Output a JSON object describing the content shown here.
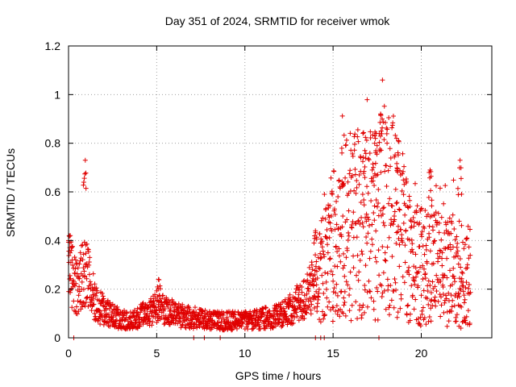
{
  "chart_data": {
    "type": "scatter",
    "title": "Day 351 of 2024, SRMTID for receiver wmok",
    "xlabel": "GPS time / hours",
    "ylabel": "SRMTID / TECUs",
    "xlim": [
      0,
      24
    ],
    "ylim": [
      0,
      1.2
    ],
    "xticks": [
      0,
      5,
      10,
      15,
      20
    ],
    "yticks": [
      0,
      0.2,
      0.4,
      0.6,
      0.8,
      1,
      1.2
    ],
    "xtick_labels": [
      "0",
      "5",
      "10",
      "15",
      "20"
    ],
    "ytick_labels": [
      "0",
      "0.2",
      "0.4",
      "0.6",
      "0.8",
      "1",
      "1.2"
    ],
    "grid": true,
    "marker": "+",
    "color": "#e00000",
    "series": [
      {
        "name": "SRMTID",
        "description": "per-satellite SRMTID values, approx. 0-22.8 h",
        "envelope": [
          {
            "x": 0.0,
            "y": 0.28
          },
          {
            "x": 0.5,
            "y": 0.2
          },
          {
            "x": 1.0,
            "y": 0.3
          },
          {
            "x": 1.5,
            "y": 0.14
          },
          {
            "x": 2.5,
            "y": 0.09
          },
          {
            "x": 3.5,
            "y": 0.07
          },
          {
            "x": 5.0,
            "y": 0.12
          },
          {
            "x": 6.5,
            "y": 0.09
          },
          {
            "x": 8.0,
            "y": 0.07
          },
          {
            "x": 10.0,
            "y": 0.07
          },
          {
            "x": 12.0,
            "y": 0.09
          },
          {
            "x": 13.5,
            "y": 0.17
          },
          {
            "x": 14.5,
            "y": 0.28
          },
          {
            "x": 15.5,
            "y": 0.45
          },
          {
            "x": 17.5,
            "y": 0.48
          },
          {
            "x": 18.5,
            "y": 0.5
          },
          {
            "x": 19.5,
            "y": 0.3
          },
          {
            "x": 20.5,
            "y": 0.28
          },
          {
            "x": 21.5,
            "y": 0.28
          },
          {
            "x": 22.8,
            "y": 0.25
          }
        ],
        "peaks": [
          {
            "x": 0.1,
            "y": 0.42
          },
          {
            "x": 0.95,
            "y": 0.73
          },
          {
            "x": 5.1,
            "y": 0.24
          },
          {
            "x": 14.0,
            "y": 0.44
          },
          {
            "x": 15.5,
            "y": 0.76
          },
          {
            "x": 16.8,
            "y": 0.77
          },
          {
            "x": 17.4,
            "y": 0.82
          },
          {
            "x": 17.8,
            "y": 1.06
          },
          {
            "x": 18.6,
            "y": 0.82
          },
          {
            "x": 20.5,
            "y": 0.69
          },
          {
            "x": 22.2,
            "y": 0.73
          }
        ],
        "zero_points": [
          0.3,
          7.1,
          7.7,
          8.6,
          14.0,
          14.3,
          14.5,
          17.6
        ]
      }
    ]
  }
}
